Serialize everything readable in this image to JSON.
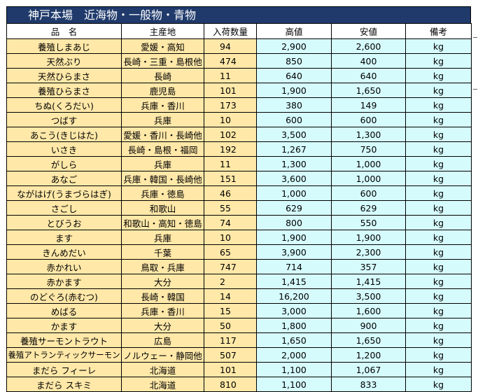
{
  "title": "神戸本場　近海物・一般物・青物",
  "columns": [
    "品　名",
    "主産地",
    "入荷数量",
    "高値",
    "安値",
    "備考"
  ],
  "rows": [
    {
      "name": "養殖しまあじ",
      "origin": "愛媛・高知",
      "qty": "94",
      "high": "2,900",
      "low": "2,600",
      "unit": "kg"
    },
    {
      "name": "天然ぶり",
      "origin": "長崎・三重・島根他",
      "qty": "474",
      "high": "850",
      "low": "400",
      "unit": "kg"
    },
    {
      "name": "天然ひらまさ",
      "origin": "長崎",
      "qty": "11",
      "high": "640",
      "low": "640",
      "unit": "kg"
    },
    {
      "name": "養殖ひらまさ",
      "origin": "鹿児島",
      "qty": "101",
      "high": "1,900",
      "low": "1,650",
      "unit": "kg"
    },
    {
      "name": "ちぬ(くろだい)",
      "origin": "兵庫・香川",
      "qty": "173",
      "high": "380",
      "low": "149",
      "unit": "kg"
    },
    {
      "name": "つばす",
      "origin": "兵庫",
      "qty": "10",
      "high": "600",
      "low": "600",
      "unit": "kg"
    },
    {
      "name": "あこう(きじはた)",
      "origin": "愛媛・香川・長崎他",
      "qty": "102",
      "high": "3,500",
      "low": "1,300",
      "unit": "kg"
    },
    {
      "name": "いさき",
      "origin": "長崎・島根・福岡",
      "qty": "192",
      "high": "1,267",
      "low": "750",
      "unit": "kg"
    },
    {
      "name": "がしら",
      "origin": "兵庫",
      "qty": "11",
      "high": "1,300",
      "low": "1,000",
      "unit": "kg"
    },
    {
      "name": "あなご",
      "origin": "兵庫・韓国・長崎他",
      "qty": "151",
      "high": "3,600",
      "low": "1,000",
      "unit": "kg"
    },
    {
      "name": "ながはげ(うまづらはぎ)",
      "origin": "兵庫・徳島",
      "qty": "46",
      "high": "1,000",
      "low": "600",
      "unit": "kg"
    },
    {
      "name": "さごし",
      "origin": "和歌山",
      "qty": "55",
      "high": "629",
      "low": "629",
      "unit": "kg"
    },
    {
      "name": "とびうお",
      "origin": "和歌山・高知・徳島",
      "qty": "74",
      "high": "800",
      "low": "550",
      "unit": "kg"
    },
    {
      "name": "ます",
      "origin": "兵庫",
      "qty": "10",
      "high": "1,900",
      "low": "1,900",
      "unit": "kg"
    },
    {
      "name": "きんめだい",
      "origin": "千葉",
      "qty": "65",
      "high": "3,900",
      "low": "2,300",
      "unit": "kg"
    },
    {
      "name": "赤かれい",
      "origin": "鳥取・兵庫",
      "qty": "747",
      "high": "714",
      "low": "357",
      "unit": "kg"
    },
    {
      "name": "赤かます",
      "origin": "大分",
      "qty": "2",
      "high": "1,415",
      "low": "1,415",
      "unit": "kg"
    },
    {
      "name": "のどぐろ(赤むつ)",
      "origin": "長崎・韓国",
      "qty": "14",
      "high": "16,200",
      "low": "3,500",
      "unit": "kg"
    },
    {
      "name": "めばる",
      "origin": "兵庫・香川",
      "qty": "15",
      "high": "3,000",
      "low": "1,600",
      "unit": "kg"
    },
    {
      "name": "かます",
      "origin": "大分",
      "qty": "50",
      "high": "1,800",
      "low": "900",
      "unit": "kg"
    },
    {
      "name": "養殖サーモントラウト",
      "origin": "広島",
      "qty": "117",
      "high": "1,650",
      "low": "1,650",
      "unit": "kg"
    },
    {
      "name": "養殖アトランティックサーモン",
      "origin": "ノルウェー・静岡他",
      "qty": "507",
      "high": "2,000",
      "low": "1,200",
      "unit": "kg"
    },
    {
      "name": "まだら フィーレ",
      "origin": "北海道",
      "qty": "101",
      "high": "1,100",
      "low": "1,067",
      "unit": "kg"
    },
    {
      "name": "まだら スキミ",
      "origin": "北海道",
      "qty": "810",
      "high": "1,100",
      "low": "833",
      "unit": "kg"
    }
  ]
}
